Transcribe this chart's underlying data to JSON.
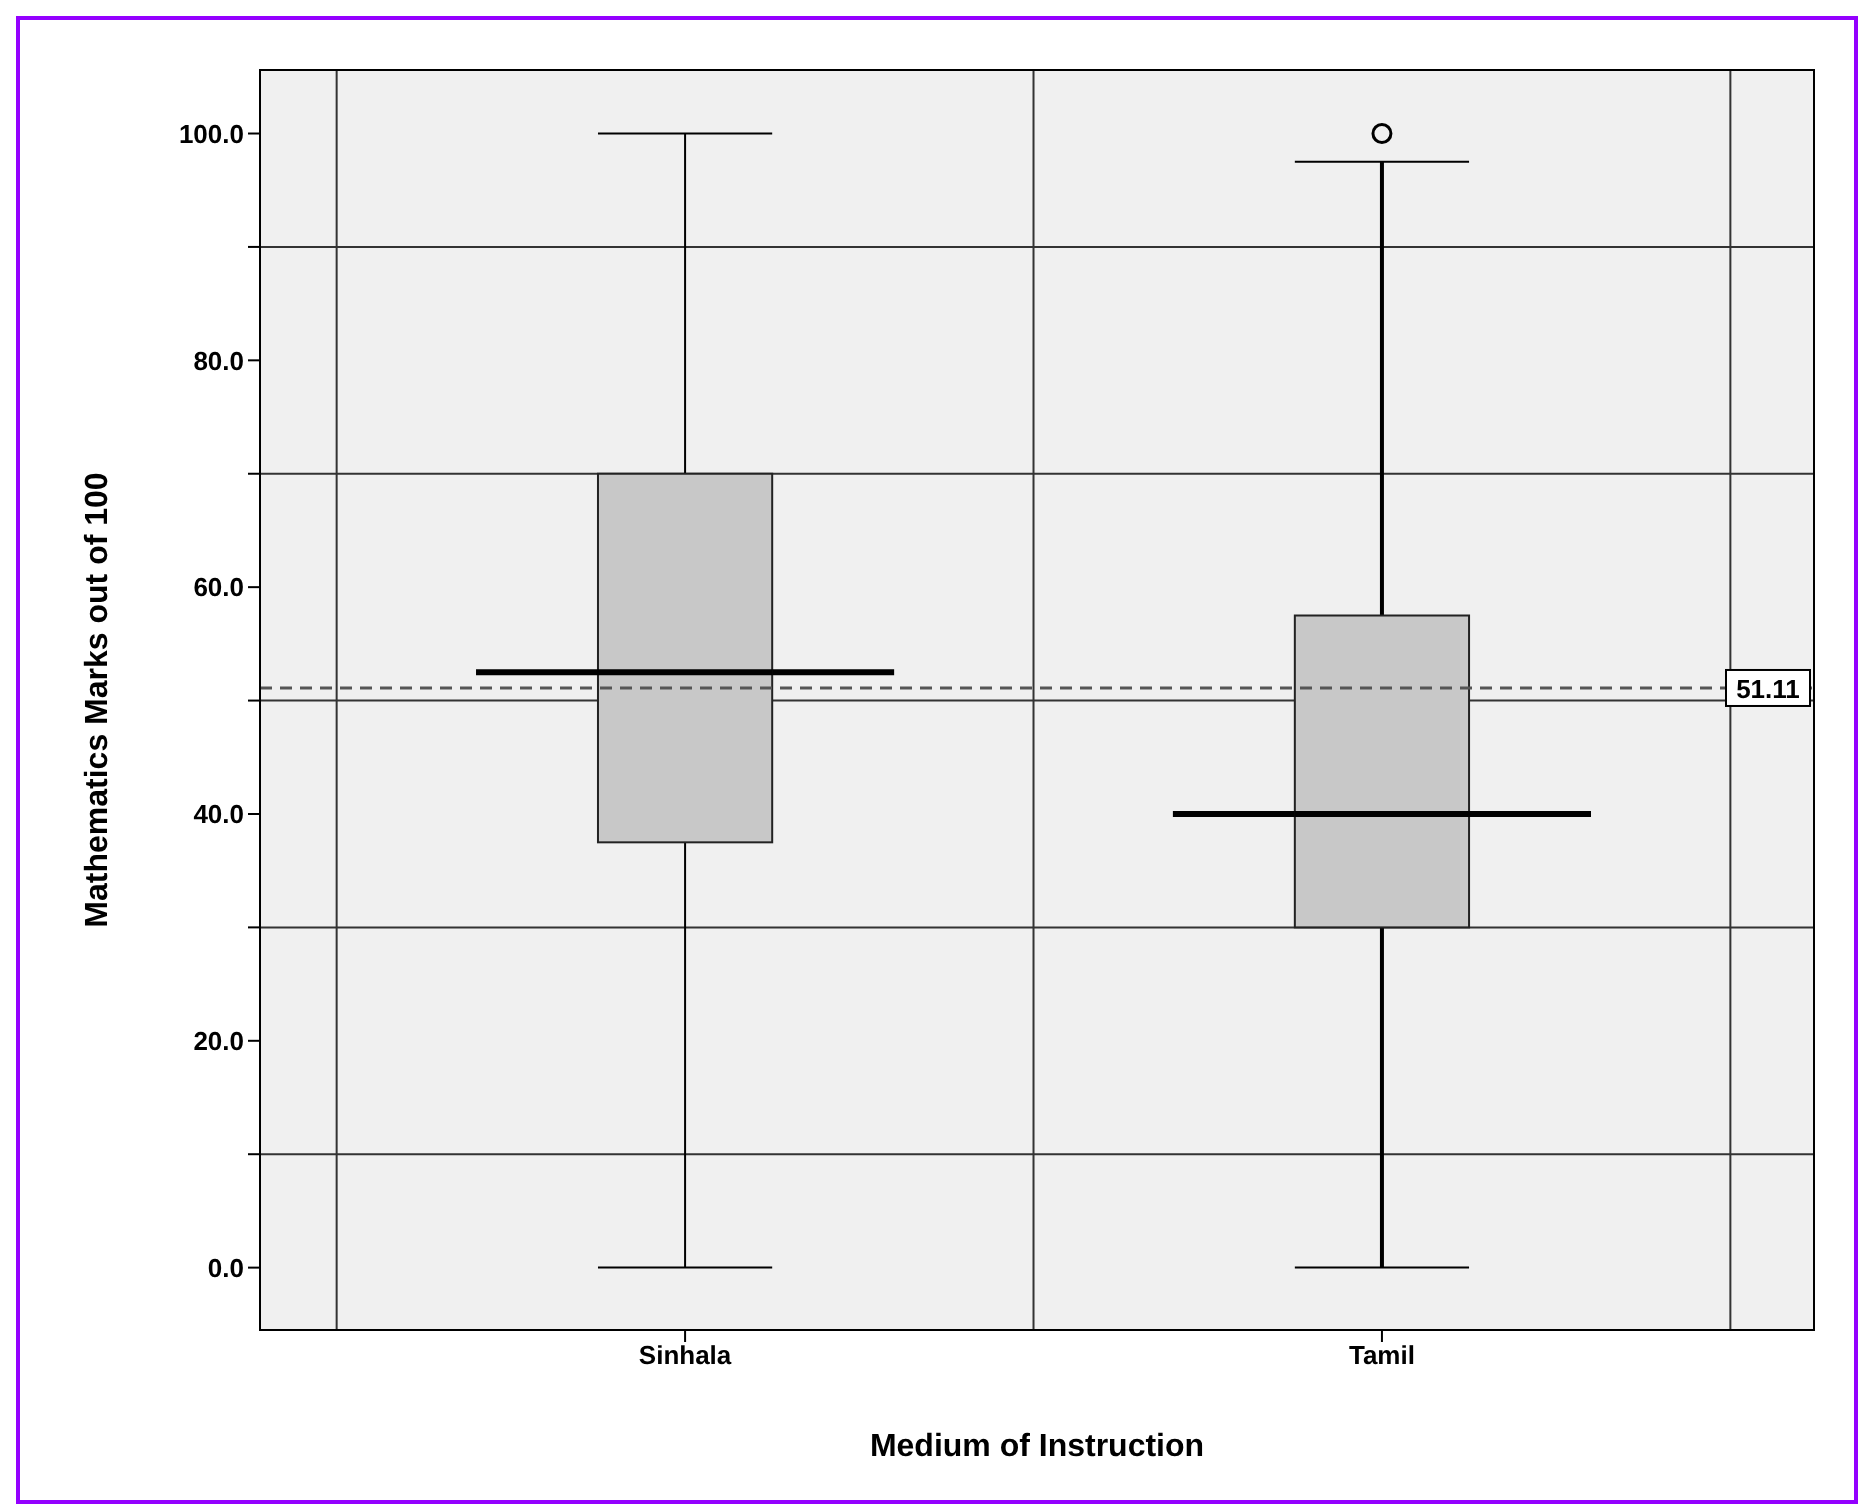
{
  "chart_data": {
    "type": "box",
    "xlabel": "Medium of Instruction",
    "ylabel": "Mathematics Marks out of 100",
    "categories": [
      "Sinhala",
      "Tamil"
    ],
    "boxes": [
      {
        "low": 0,
        "q1": 37.5,
        "median": 52.5,
        "q3": 70,
        "high": 100
      },
      {
        "low": 0,
        "q1": 30,
        "median": 40,
        "q3": 57.5,
        "high": 97.5,
        "outliers": [
          100
        ]
      }
    ],
    "color": "#c8c8c8",
    "ylim": [
      -5.5,
      105.6
    ],
    "yticks": [
      {
        "value": 0,
        "label": "0.0"
      },
      {
        "value": 10,
        "label": null
      },
      {
        "value": 20,
        "label": "20.0"
      },
      {
        "value": 30,
        "label": null
      },
      {
        "value": 40,
        "label": "40.0"
      },
      {
        "value": 50,
        "label": null
      },
      {
        "value": 60,
        "label": "60.0"
      },
      {
        "value": 70,
        "label": null
      },
      {
        "value": 80,
        "label": "80.0"
      },
      {
        "value": 90,
        "label": null
      },
      {
        "value": 100,
        "label": "100.0"
      }
    ],
    "grid": true,
    "ref_lines": [
      {
        "axis": "y",
        "value": 51.11,
        "label": "51.11",
        "color": "#555555",
        "line_style": "dashed"
      }
    ]
  }
}
